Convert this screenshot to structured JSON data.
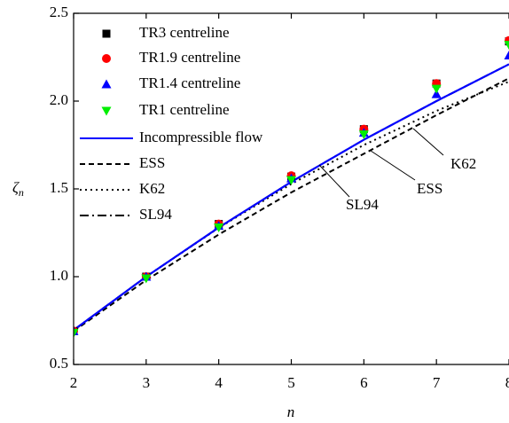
{
  "chart_data": {
    "type": "line",
    "x_label": "n",
    "y_label": {
      "symbol": "ζ",
      "subscript": "n"
    },
    "xlim": [
      2,
      8
    ],
    "ylim": [
      0.5,
      2.5
    ],
    "xticks": [
      2,
      3,
      4,
      5,
      6,
      7,
      8
    ],
    "yticks": [
      0.5,
      {
        "value": 1,
        "label": "1.0"
      },
      1.5,
      {
        "value": 2,
        "label": "2.0"
      },
      2.5
    ],
    "series": [
      {
        "name": "TR3 centreline",
        "color": "#000000",
        "marker": "square",
        "x": [
          2,
          3,
          4,
          5,
          6,
          7,
          8
        ],
        "values": [
          0.69,
          1.0,
          1.3,
          1.57,
          1.84,
          2.1,
          2.34
        ]
      },
      {
        "name": "TR1.9 centreline",
        "color": "#ff0000",
        "marker": "circle",
        "x": [
          2,
          3,
          4,
          5,
          6,
          7,
          8
        ],
        "values": [
          0.69,
          1.0,
          1.3,
          1.575,
          1.84,
          2.1,
          2.345
        ]
      },
      {
        "name": "TR1.4 centreline",
        "color": "#0000ff",
        "marker": "triangle-up",
        "x": [
          2,
          3,
          4,
          5,
          6,
          7,
          8
        ],
        "values": [
          0.69,
          1.0,
          1.29,
          1.56,
          1.82,
          2.04,
          2.26
        ]
      },
      {
        "name": "TR1 centreline",
        "color": "#00ee00",
        "marker": "triangle-down",
        "x": [
          2,
          3,
          4,
          5,
          6,
          7,
          8
        ],
        "values": [
          0.68,
          0.99,
          1.28,
          1.55,
          1.81,
          2.07,
          2.32
        ]
      },
      {
        "name": "Incompressible flow",
        "color": "#0000ff",
        "dash": "solid",
        "x": [
          2,
          3,
          4,
          5,
          6,
          7,
          8
        ],
        "values": [
          0.696,
          1.0,
          1.28,
          1.54,
          1.78,
          2.0,
          2.21
        ]
      },
      {
        "name": "ESS",
        "color": "#000000",
        "dash": "dashed",
        "x": [
          2,
          3,
          4,
          5,
          6,
          7,
          8
        ],
        "values": [
          0.69,
          0.98,
          1.24,
          1.48,
          1.7,
          1.92,
          2.13
        ]
      },
      {
        "name": "K62",
        "color": "#000000",
        "dash": "dotted",
        "x": [
          2,
          3,
          4,
          5,
          6,
          7,
          8
        ],
        "values": [
          0.694,
          1.0,
          1.278,
          1.528,
          1.75,
          1.944,
          2.111
        ]
      },
      {
        "name": "SL94",
        "color": "#000000",
        "dash": "dashdot",
        "x": [
          2,
          3,
          4,
          5,
          6,
          7,
          8
        ],
        "values": [
          0.696,
          1.0,
          1.28,
          1.54,
          1.78,
          2.0,
          2.21
        ]
      }
    ],
    "annotations": [
      "K62",
      "ESS",
      "SL94"
    ]
  }
}
